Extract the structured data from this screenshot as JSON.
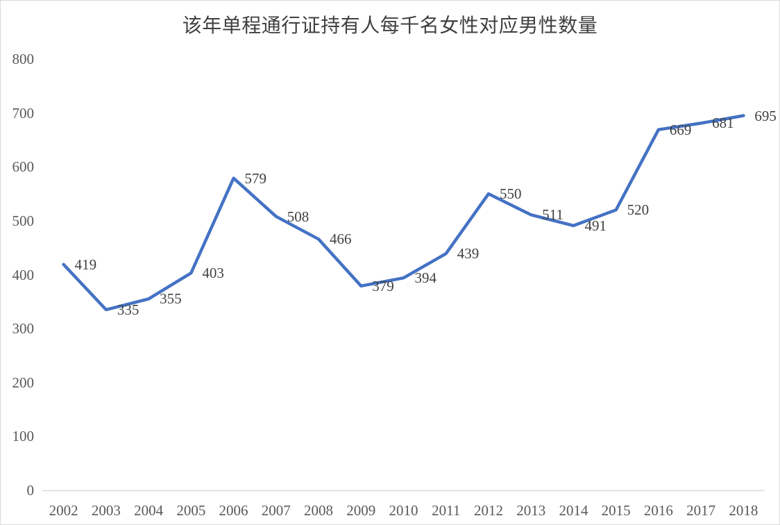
{
  "chart_data": {
    "type": "line",
    "title": "该年单程通行证持有人每千名女性对应男性数量",
    "categories": [
      "2002",
      "2003",
      "2004",
      "2005",
      "2006",
      "2007",
      "2008",
      "2009",
      "2010",
      "2011",
      "2012",
      "2013",
      "2014",
      "2015",
      "2016",
      "2017",
      "2018"
    ],
    "values": [
      419,
      335,
      355,
      403,
      579,
      508,
      466,
      379,
      394,
      439,
      550,
      511,
      491,
      520,
      669,
      681,
      695
    ],
    "xlabel": "",
    "ylabel": "",
    "ylim": [
      0,
      800
    ],
    "yticks": [
      0,
      100,
      200,
      300,
      400,
      500,
      600,
      700,
      800
    ],
    "grid": false,
    "legend_position": "none",
    "data_labels_visible": true,
    "colors": {
      "line": "#4472C4",
      "data_label": "#404040",
      "tick_label": "#595959",
      "title": "#404040",
      "axis_line": "#d9d9d9",
      "background": "#ffffff",
      "border": "#d9d9d9"
    }
  }
}
